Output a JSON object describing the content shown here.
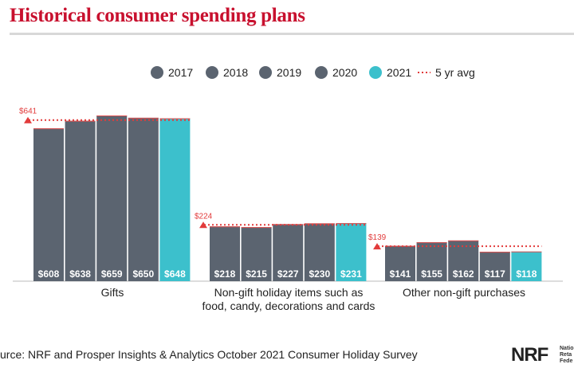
{
  "title": "Historical consumer spending plans",
  "source": "urce: NRF and Prosper Insights & Analytics October 2021 Consumer Holiday Survey",
  "logo": {
    "mark": "NRF",
    "sub": "Natio\nReta\nFede"
  },
  "colors": {
    "title": "#c8102e",
    "bar": "#5b6470",
    "bar_highlight": "#3cc0cc",
    "avg": "#e23b3b"
  },
  "chart_data": {
    "type": "bar",
    "series_names": [
      "2017",
      "2018",
      "2019",
      "2020",
      "2021"
    ],
    "avg_label": "5 yr avg",
    "groups": [
      {
        "label": [
          "Gifts"
        ],
        "values": [
          608,
          638,
          659,
          650,
          648
        ],
        "value_labels": [
          "$608",
          "$638",
          "$659",
          "$650",
          "$648"
        ],
        "avg": 641,
        "avg_label": "$641"
      },
      {
        "label": [
          "Non-gift holiday items such as",
          "food, candy, decorations and cards"
        ],
        "values": [
          218,
          215,
          227,
          230,
          231
        ],
        "value_labels": [
          "$218",
          "$215",
          "$227",
          "$230",
          "$231"
        ],
        "avg": 224,
        "avg_label": "$224"
      },
      {
        "label": [
          "Other non-gift purchases"
        ],
        "values": [
          141,
          155,
          162,
          117,
          118
        ],
        "value_labels": [
          "$141",
          "$155",
          "$162",
          "$117",
          "$118"
        ],
        "avg": 139,
        "avg_label": "$139"
      }
    ]
  }
}
